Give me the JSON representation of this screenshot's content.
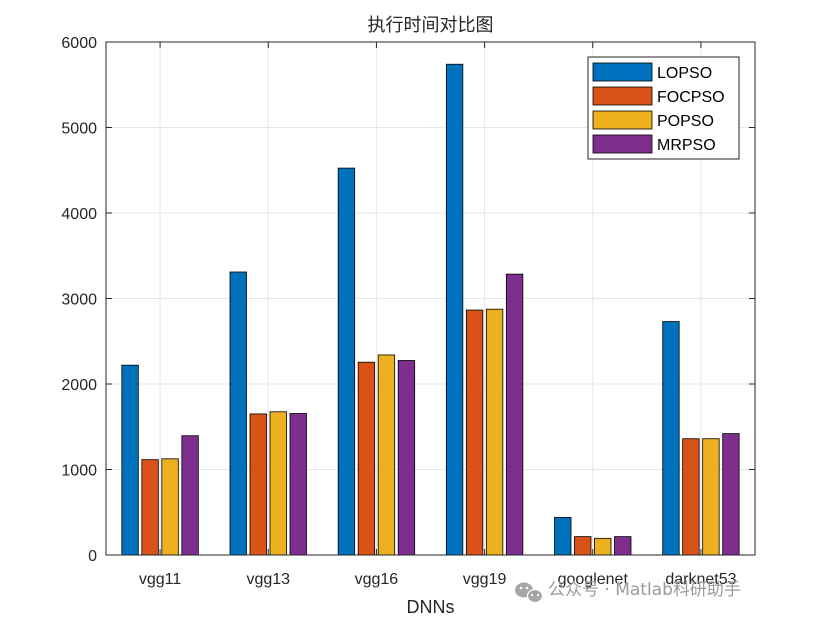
{
  "chart_data": {
    "type": "bar",
    "title": "执行时间对比图",
    "xlabel": "DNNs",
    "ylabel": "",
    "categories": [
      "vgg11",
      "vgg13",
      "vgg16",
      "vgg19",
      "googlenet",
      "darknet53"
    ],
    "ylim": [
      0,
      6000
    ],
    "yticks": [
      0,
      1000,
      2000,
      3000,
      4000,
      5000,
      6000
    ],
    "grid": true,
    "legend_position": "top-right",
    "series": [
      {
        "name": "LOPSO",
        "color": "#0072BD",
        "values": [
          2220,
          3310,
          4525,
          5740,
          440,
          2730
        ]
      },
      {
        "name": "FOCPSO",
        "color": "#D95319",
        "values": [
          1115,
          1650,
          2255,
          2865,
          215,
          1360
        ]
      },
      {
        "name": "POPSO",
        "color": "#EDB120",
        "values": [
          1125,
          1675,
          2340,
          2875,
          195,
          1360
        ]
      },
      {
        "name": "MRPSO",
        "color": "#7E2F8E",
        "values": [
          1395,
          1655,
          2275,
          3285,
          215,
          1420
        ]
      }
    ]
  },
  "watermark": {
    "text": "公众号 · Matlab科研助手",
    "icon": "wechat-icon"
  }
}
